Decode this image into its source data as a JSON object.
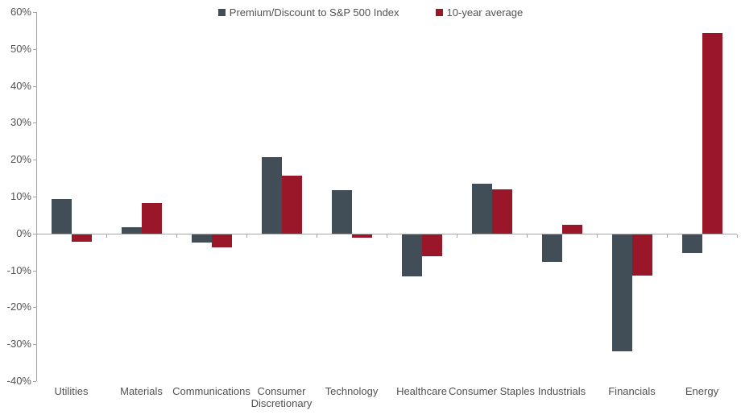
{
  "chart_data": {
    "type": "bar",
    "title": "",
    "categories": [
      "Utilities",
      "Materials",
      "Communications",
      "Consumer Discretionary",
      "Technology",
      "Healthcare",
      "Consumer Staples",
      "Industrials",
      "Financials",
      "Energy"
    ],
    "series": [
      {
        "name": "Premium/Discount to S&P 500 Index",
        "color": "#414e57",
        "values": [
          9.3,
          1.6,
          -2.3,
          20.8,
          11.8,
          -11.3,
          13.4,
          -7.5,
          -31.7,
          -5.1
        ]
      },
      {
        "name": "10-year average",
        "color": "#991728",
        "values": [
          -2.0,
          8.2,
          -3.5,
          15.6,
          -1.0,
          -6.0,
          12.0,
          2.3,
          -11.2,
          54.3
        ]
      }
    ],
    "ylim": [
      -40,
      60
    ],
    "ytick_step": 10,
    "ytick_suffix": "%",
    "grid": false,
    "legend_position": "top",
    "xlabel": "",
    "ylabel": ""
  },
  "style": {
    "bar_series_1_color": "#414e57",
    "bar_series_2_color": "#991728",
    "axis_color": "#a6a6a6",
    "label_color": "#515151",
    "background": "#ffffff"
  }
}
